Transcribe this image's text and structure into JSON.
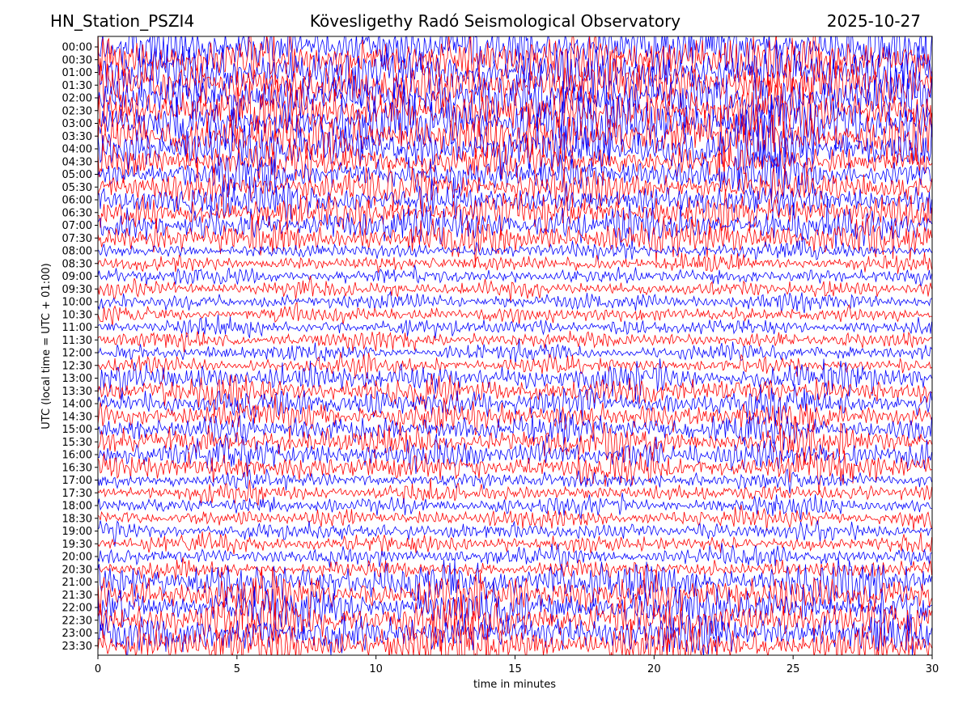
{
  "header": {
    "station": "HN_Station_PSZI4",
    "observatory": "Kövesligethy Radó Seismological Observatory",
    "date": "2025-10-27"
  },
  "chart_data": {
    "type": "line",
    "title": "Kövesligethy Radó Seismological Observatory",
    "xlabel": "time in minutes",
    "ylabel": "UTC (local time = UTC + 01:00)",
    "xlim": [
      0,
      30
    ],
    "xticks": [
      0,
      5,
      10,
      15,
      20,
      25,
      30
    ],
    "row_labels": [
      "00:00",
      "00:30",
      "01:00",
      "01:30",
      "02:00",
      "02:30",
      "03:00",
      "03:30",
      "04:00",
      "04:30",
      "05:00",
      "05:30",
      "06:00",
      "06:30",
      "07:00",
      "07:30",
      "08:00",
      "08:30",
      "09:00",
      "09:30",
      "10:00",
      "10:30",
      "11:00",
      "11:30",
      "12:00",
      "12:30",
      "13:00",
      "13:30",
      "14:00",
      "14:30",
      "15:00",
      "15:30",
      "16:00",
      "16:30",
      "17:00",
      "17:30",
      "18:00",
      "18:30",
      "19:00",
      "19:30",
      "20:00",
      "20:30",
      "21:00",
      "21:30",
      "22:00",
      "22:30",
      "23:00",
      "23:30"
    ],
    "trace_colors": [
      "#0000ff",
      "#ff0000"
    ],
    "grid": false
  }
}
